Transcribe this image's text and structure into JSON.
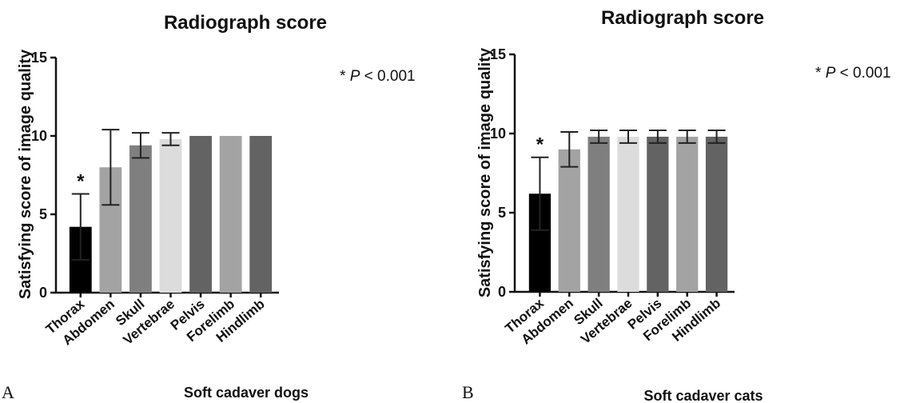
{
  "chart_data": [
    {
      "type": "bar",
      "panel_label": "A",
      "title": "Radiograph score",
      "xlabel": "Soft cadaver dogs",
      "ylabel": "Satisfying score of image quality",
      "ylim": [
        0,
        15
      ],
      "yticks": [
        0,
        5,
        10,
        15
      ],
      "annotation": "* P < 0.001",
      "annotation_parts": [
        "* ",
        "P",
        " < 0.001"
      ],
      "significance_marker": "*",
      "significant_category": "Thorax",
      "categories": [
        "Thorax",
        "Abdomen",
        "Skull",
        "Vertebrae",
        "Pelvis",
        "Forelimb",
        "Hindlimb"
      ],
      "values": [
        4.2,
        8.0,
        9.4,
        9.8,
        10.0,
        10.0,
        10.0
      ],
      "error": [
        2.1,
        2.4,
        0.8,
        0.4,
        0,
        0,
        0
      ],
      "colors": [
        "#000000",
        "#a3a3a3",
        "#7f7f7f",
        "#dcdcdc",
        "#636363",
        "#a3a3a3",
        "#636363"
      ],
      "grid": false
    },
    {
      "type": "bar",
      "panel_label": "B",
      "title": "Radiograph score",
      "xlabel": "Soft cadaver cats",
      "ylabel": "Satisfying score of image quality",
      "ylim": [
        0,
        15
      ],
      "yticks": [
        0,
        5,
        10,
        15
      ],
      "annotation": "* P < 0.001",
      "annotation_parts": [
        "* ",
        "P",
        " < 0.001"
      ],
      "significance_marker": "*",
      "significant_category": "Thorax",
      "categories": [
        "Thorax",
        "Abdomen",
        "Skull",
        "Vertebrae",
        "Pelvis",
        "Forelimb",
        "Hindlimb"
      ],
      "values": [
        6.2,
        9.0,
        9.8,
        9.8,
        9.8,
        9.8,
        9.8
      ],
      "error": [
        2.3,
        1.1,
        0.4,
        0.4,
        0.4,
        0.4,
        0.4
      ],
      "colors": [
        "#000000",
        "#a3a3a3",
        "#7f7f7f",
        "#dcdcdc",
        "#636363",
        "#a3a3a3",
        "#636363"
      ],
      "grid": false
    }
  ]
}
